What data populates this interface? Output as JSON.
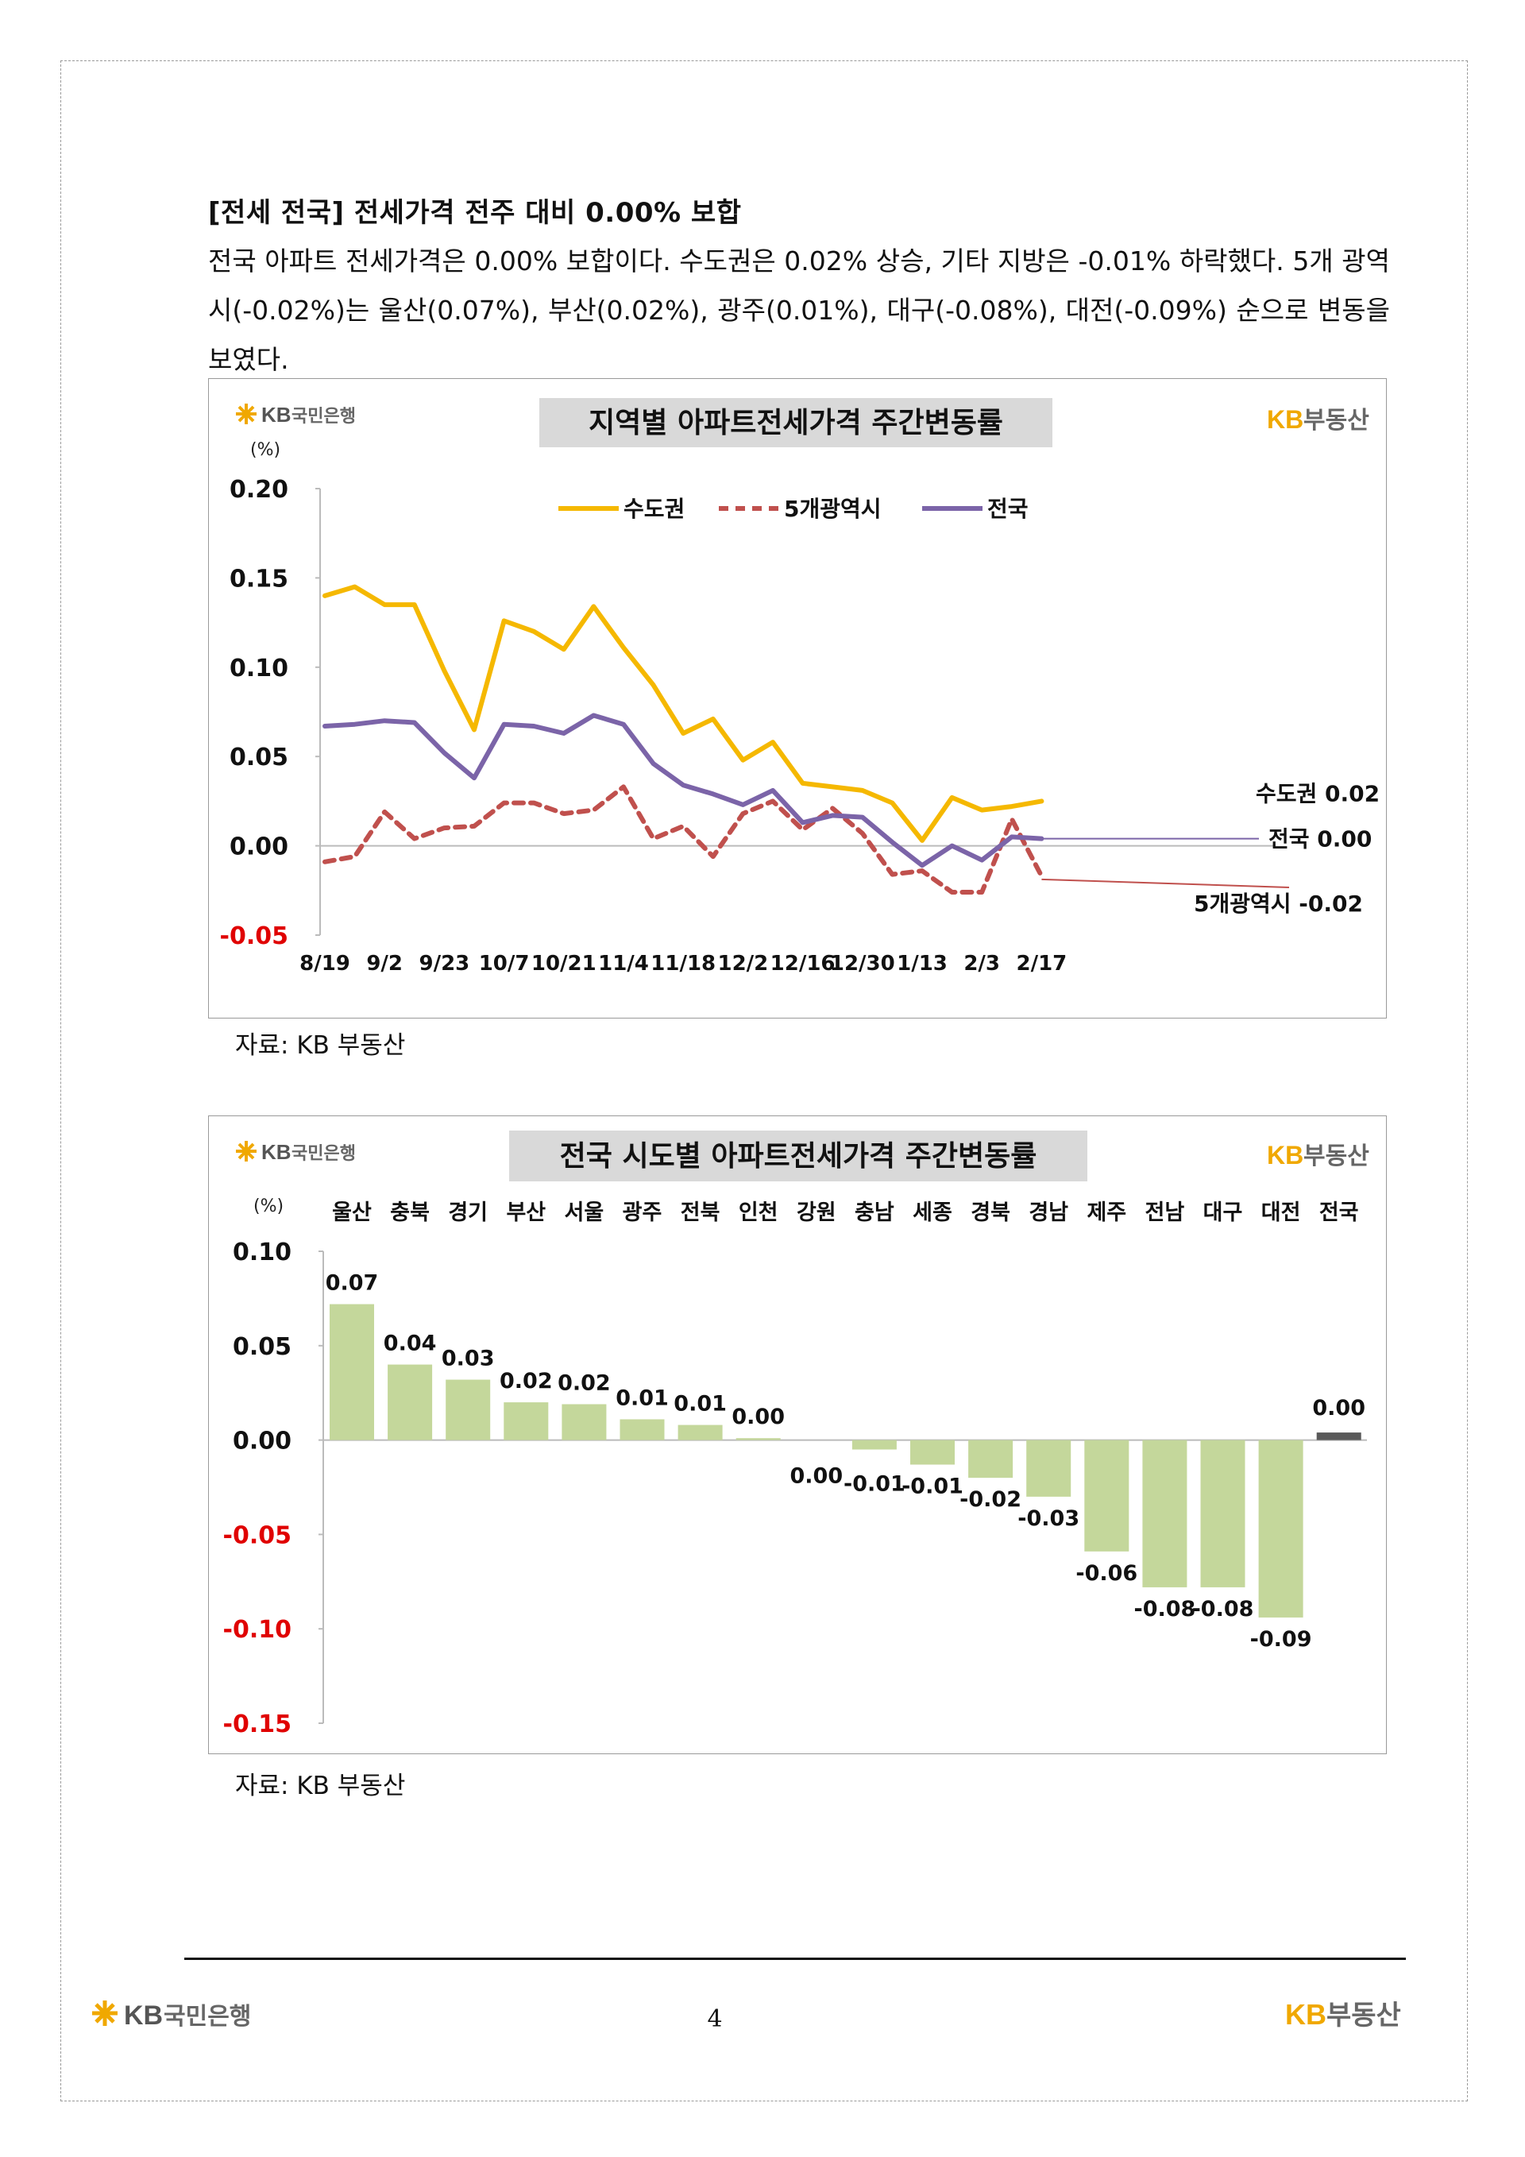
{
  "section": {
    "heading": "[전세 전국] 전세가격 전주 대비 0.00% 보합",
    "paragraph": "전국 아파트 전세가격은 0.00% 보합이다. 수도권은 0.02% 상승, 기타 지방은 -0.01% 하락했다. 5개 광역시(-0.02%)는 울산(0.07%), 부산(0.02%), 광주(0.01%), 대구(-0.08%), 대전(-0.09%) 순으로 변동을 보였다."
  },
  "logos": {
    "kb_bank": "KB국민은행",
    "kb_text": "KB",
    "bank_text": "국민은행",
    "kb_land": "KB부동산",
    "land_text": "부동산"
  },
  "colors": {
    "capital": "#F5B800",
    "metro": "#C0504D",
    "nation": "#7B64A8",
    "bar": "#C4D79B",
    "bar_nation": "#595959",
    "negative_tick": "#E00000",
    "logo_gold": "#F0A800"
  },
  "chart_data": [
    {
      "type": "line",
      "title": "지역별 아파트전세가격 주간변동률",
      "ylabel": "(%)",
      "ylim": [
        -0.05,
        0.2
      ],
      "yticks": [
        "0.20",
        "0.15",
        "0.10",
        "0.05",
        "0.00",
        "-0.05"
      ],
      "x_tick_labels": [
        "8/19",
        "9/2",
        "9/23",
        "10/7",
        "10/21",
        "11/4",
        "11/18",
        "12/2",
        "12/16",
        "12/30",
        "1/13",
        "2/3",
        "2/17"
      ],
      "series": [
        {
          "name": "수도권",
          "end_label": "수도권 0.02",
          "values": [
            0.14,
            0.145,
            0.135,
            0.135,
            0.098,
            0.065,
            0.126,
            0.12,
            0.11,
            0.134,
            0.111,
            0.09,
            0.063,
            0.071,
            0.048,
            0.058,
            0.035,
            0.033,
            0.031,
            0.024,
            0.003,
            0.027,
            0.02,
            0.022,
            0.025
          ]
        },
        {
          "name": "5개광역시",
          "end_label": "5개광역시 -0.02",
          "values": [
            -0.009,
            -0.006,
            0.019,
            0.004,
            0.01,
            0.011,
            0.024,
            0.024,
            0.018,
            0.02,
            0.033,
            0.004,
            0.011,
            -0.006,
            0.018,
            0.025,
            0.009,
            0.021,
            0.007,
            -0.016,
            -0.014,
            -0.026,
            -0.026,
            0.015,
            -0.017
          ]
        },
        {
          "name": "전국",
          "end_label": "전국 0.00",
          "values": [
            0.067,
            0.068,
            0.07,
            0.069,
            0.052,
            0.038,
            0.068,
            0.067,
            0.063,
            0.073,
            0.068,
            0.046,
            0.034,
            0.029,
            0.023,
            0.031,
            0.013,
            0.017,
            0.016,
            0.002,
            -0.011,
            0.0,
            -0.008,
            0.005,
            0.004
          ]
        }
      ]
    },
    {
      "type": "bar",
      "title": "전국 시도별 아파트전세가격 주간변동률",
      "ylabel": "(%)",
      "ylim": [
        -0.15,
        0.1
      ],
      "yticks": [
        "0.10",
        "0.05",
        "0.00",
        "-0.05",
        "-0.10",
        "-0.15"
      ],
      "categories": [
        "울산",
        "충북",
        "경기",
        "부산",
        "서울",
        "광주",
        "전북",
        "인천",
        "강원",
        "충남",
        "세종",
        "경북",
        "경남",
        "제주",
        "전남",
        "대구",
        "대전",
        "전국"
      ],
      "values": [
        0.072,
        0.04,
        0.032,
        0.02,
        0.019,
        0.011,
        0.008,
        0.001,
        0.0,
        -0.005,
        -0.013,
        -0.02,
        -0.03,
        -0.059,
        -0.078,
        -0.078,
        -0.094,
        0.004
      ],
      "value_labels": [
        "0.07",
        "0.04",
        "0.03",
        "0.02",
        "0.02",
        "0.01",
        "0.01",
        "0.00",
        "0.00",
        "-0.01",
        "-0.01",
        "-0.02",
        "-0.03",
        "-0.06",
        "-0.08",
        "-0.08",
        "-0.09",
        "0.00"
      ]
    }
  ],
  "source_note": "자료: KB 부동산",
  "page_number": "4"
}
